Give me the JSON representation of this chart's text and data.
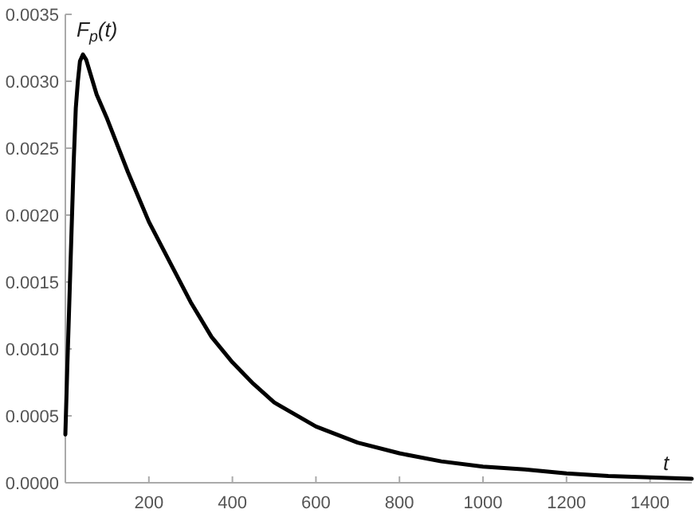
{
  "chart_data": {
    "type": "line",
    "xlabel": "t",
    "ylabel": "F$_{p}$(t)",
    "x": [
      0,
      5,
      10,
      15,
      20,
      25,
      30,
      35,
      42,
      50,
      75,
      100,
      150,
      200,
      250,
      300,
      350,
      400,
      450,
      500,
      600,
      700,
      800,
      900,
      1000,
      1100,
      1200,
      1300,
      1400,
      1500
    ],
    "series": [
      {
        "color": "#000000",
        "values": [
          0.00036,
          0.0009,
          0.0014,
          0.0019,
          0.0024,
          0.0028,
          0.003,
          0.00315,
          0.0032,
          0.00316,
          0.0029,
          0.00272,
          0.00232,
          0.00195,
          0.00165,
          0.00135,
          0.00109,
          0.0009,
          0.00074,
          0.0006,
          0.00042,
          0.0003,
          0.00022,
          0.00016,
          0.00012,
          0.0001,
          7e-05,
          5e-05,
          4e-05,
          3e-05
        ]
      }
    ],
    "xlim": [
      0,
      1500
    ],
    "ylim": [
      0,
      0.0035
    ],
    "xticks": [
      200,
      400,
      600,
      800,
      1000,
      1200,
      1400
    ],
    "yticks": [
      {
        "value": 0,
        "label": "0.0000"
      },
      {
        "value": 0.0005,
        "label": "0.0005"
      },
      {
        "value": 0.001,
        "label": "0.0010"
      },
      {
        "value": 0.0015,
        "label": "0.0015"
      },
      {
        "value": 0.002,
        "label": "0.0020"
      },
      {
        "value": 0.0025,
        "label": "0.0025"
      },
      {
        "value": 0.003,
        "label": "0.0030"
      },
      {
        "value": 0.0035,
        "label": "0.0035"
      }
    ],
    "grid": false,
    "marker": "none",
    "line_style": "solid"
  }
}
